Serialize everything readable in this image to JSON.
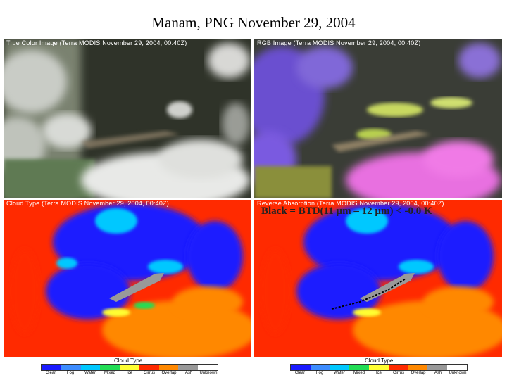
{
  "title": "Manam, PNG November 29, 2004",
  "panels": {
    "true_color": {
      "caption": "True Color Image (Terra MODIS November 29, 2004, 00:40Z)"
    },
    "rgb": {
      "caption": "RGB Image (Terra MODIS November 29, 2004, 00:40Z)"
    },
    "cloud_type": {
      "caption": "Cloud Type (Terra MODIS November 29, 2004, 00:40Z)"
    },
    "reverse_absorption": {
      "caption": "Reverse Absorption (Terra MODIS November 29, 2004, 00:40Z)",
      "overlay_note": "Black = BTD(11 µm – 12 µm) < -0.0 K"
    }
  },
  "legend": {
    "title": "Cloud Type",
    "labels": [
      "Clear",
      "Fog",
      "Water",
      "Mixed",
      "Ice",
      "Cirrus",
      "Overlap",
      "Ash",
      "Unknown"
    ],
    "colors": [
      "#1a1aff",
      "#3c8cff",
      "#00c8ff",
      "#22dd55",
      "#ffff33",
      "#ff2a00",
      "#ff8800",
      "#999999",
      "#ffffff"
    ]
  }
}
